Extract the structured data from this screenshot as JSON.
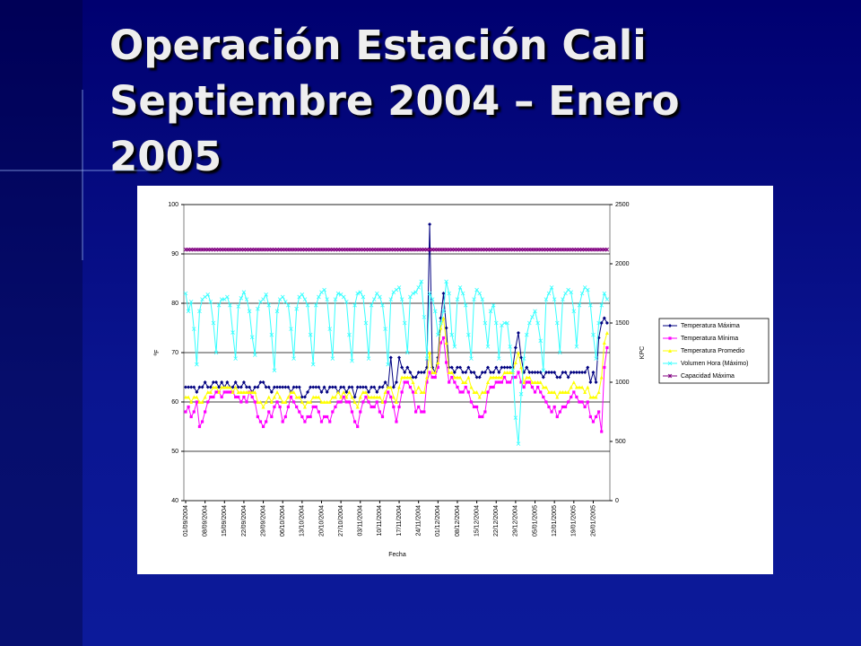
{
  "slide_title": "Operación Estación Cali Septiembre 2004 – Enero 2005",
  "chart_data": {
    "type": "line",
    "x_label": "Fecha",
    "y_label": "ºF",
    "y2_label": "KPC",
    "ylim": [
      40,
      100
    ],
    "yticks": [
      40,
      50,
      60,
      70,
      80,
      90,
      100
    ],
    "y2lim": [
      0,
      2500
    ],
    "y2ticks": [
      0,
      500,
      1000,
      1500,
      2000,
      2500
    ],
    "grid": true,
    "legend": "right",
    "categories": [
      "01/09/2004",
      null,
      null,
      null,
      null,
      null,
      null,
      "08/09/2004",
      null,
      null,
      null,
      null,
      null,
      null,
      "15/09/2004",
      null,
      null,
      null,
      null,
      null,
      null,
      "22/09/2004",
      null,
      null,
      null,
      null,
      null,
      null,
      "29/09/2004",
      null,
      null,
      null,
      null,
      null,
      null,
      "06/10/2004",
      null,
      null,
      null,
      null,
      null,
      null,
      "13/10/2004",
      null,
      null,
      null,
      null,
      null,
      null,
      "20/10/2004",
      null,
      null,
      null,
      null,
      null,
      null,
      "27/10/2004",
      null,
      null,
      null,
      null,
      null,
      null,
      "03/11/2004",
      null,
      null,
      null,
      null,
      null,
      null,
      "10/11/2004",
      null,
      null,
      null,
      null,
      null,
      null,
      "17/11/2004",
      null,
      null,
      null,
      null,
      null,
      null,
      "24/11/2004",
      null,
      null,
      null,
      null,
      null,
      null,
      "01/12/2004",
      null,
      null,
      null,
      null,
      null,
      null,
      "08/12/2004",
      null,
      null,
      null,
      null,
      null,
      null,
      "15/12/2004",
      null,
      null,
      null,
      null,
      null,
      null,
      "22/12/2004",
      null,
      null,
      null,
      null,
      null,
      null,
      "29/12/2004",
      null,
      null,
      null,
      null,
      null,
      null,
      "05/01/2005",
      null,
      null,
      null,
      null,
      null,
      null,
      "12/01/2005",
      null,
      null,
      null,
      null,
      null,
      null,
      "19/01/2005",
      null,
      null,
      null,
      null,
      null,
      null,
      "26/01/2005",
      null,
      null,
      null,
      null,
      null
    ],
    "series": [
      {
        "name": "Temperatura Máxima",
        "color": "#000080",
        "marker": "diamond",
        "values": [
          63,
          63,
          63,
          63,
          62,
          63,
          63,
          64,
          63,
          63,
          64,
          64,
          63,
          64,
          63,
          64,
          63,
          63,
          64,
          63,
          63,
          64,
          63,
          63,
          62,
          63,
          63,
          64,
          64,
          63,
          63,
          62,
          63,
          63,
          63,
          63,
          63,
          63,
          62,
          63,
          63,
          63,
          61,
          61,
          62,
          63,
          63,
          63,
          63,
          62,
          63,
          62,
          63,
          63,
          63,
          62,
          63,
          63,
          62,
          63,
          63,
          61,
          63,
          63,
          63,
          63,
          62,
          63,
          63,
          62,
          63,
          63,
          64,
          63,
          69,
          63,
          64,
          69,
          67,
          66,
          67,
          66,
          65,
          65,
          66,
          66,
          66,
          67,
          96,
          67,
          66,
          69,
          77,
          82,
          75,
          67,
          67,
          66,
          67,
          67,
          66,
          66,
          67,
          66,
          66,
          65,
          65,
          66,
          66,
          67,
          66,
          66,
          67,
          66,
          67,
          67,
          67,
          67,
          67,
          71,
          74,
          69,
          66,
          67,
          66,
          66,
          66,
          66,
          66,
          65,
          66,
          66,
          66,
          66,
          65,
          65,
          66,
          66,
          65,
          66,
          66,
          66,
          66,
          66,
          66,
          67,
          64,
          66,
          64,
          73,
          76,
          77,
          76
        ]
      },
      {
        "name": "Temperatura Mínima",
        "color": "#ff00ff",
        "marker": "square",
        "values": [
          58,
          59,
          57,
          58,
          60,
          55,
          56,
          58,
          60,
          61,
          61,
          62,
          62,
          61,
          62,
          62,
          62,
          62,
          61,
          61,
          60,
          61,
          60,
          62,
          61,
          60,
          57,
          56,
          55,
          56,
          58,
          57,
          59,
          60,
          59,
          56,
          57,
          59,
          61,
          60,
          59,
          58,
          57,
          56,
          57,
          57,
          59,
          59,
          58,
          56,
          57,
          57,
          56,
          58,
          59,
          60,
          60,
          61,
          60,
          60,
          58,
          56,
          55,
          58,
          60,
          61,
          60,
          59,
          59,
          60,
          58,
          57,
          60,
          62,
          61,
          59,
          56,
          59,
          62,
          64,
          64,
          63,
          62,
          58,
          59,
          58,
          58,
          64,
          66,
          65,
          65,
          67,
          72,
          73,
          68,
          64,
          65,
          64,
          63,
          62,
          62,
          63,
          62,
          60,
          59,
          59,
          57,
          57,
          58,
          62,
          63,
          63,
          64,
          64,
          64,
          65,
          64,
          64,
          65,
          65,
          66,
          64,
          63,
          64,
          64,
          63,
          62,
          63,
          62,
          61,
          60,
          59,
          58,
          59,
          57,
          58,
          59,
          59,
          60,
          61,
          62,
          61,
          60,
          60,
          59,
          60,
          57,
          56,
          57,
          58,
          54,
          67,
          71
        ]
      },
      {
        "name": "Temperatura Promedio",
        "color": "#ffff00",
        "marker": "triangle",
        "values": [
          61,
          61,
          60,
          61,
          61,
          60,
          60,
          61,
          62,
          62,
          63,
          63,
          62,
          63,
          63,
          63,
          63,
          62,
          63,
          62,
          62,
          62,
          62,
          62,
          62,
          62,
          60,
          60,
          59,
          60,
          61,
          60,
          61,
          62,
          61,
          60,
          60,
          61,
          62,
          62,
          61,
          61,
          60,
          59,
          60,
          60,
          61,
          61,
          61,
          60,
          60,
          60,
          60,
          61,
          61,
          62,
          61,
          62,
          61,
          62,
          61,
          60,
          59,
          61,
          62,
          62,
          61,
          61,
          61,
          61,
          61,
          60,
          62,
          63,
          63,
          61,
          60,
          63,
          65,
          65,
          65,
          65,
          64,
          62,
          63,
          62,
          62,
          65,
          70,
          66,
          66,
          68,
          75,
          77,
          72,
          66,
          66,
          65,
          65,
          65,
          64,
          64,
          65,
          63,
          62,
          62,
          61,
          62,
          62,
          64,
          65,
          65,
          65,
          65,
          65,
          66,
          66,
          66,
          66,
          68,
          70,
          67,
          64,
          65,
          65,
          64,
          64,
          64,
          64,
          63,
          63,
          62,
          62,
          62,
          61,
          62,
          62,
          62,
          62,
          63,
          64,
          63,
          63,
          63,
          62,
          63,
          61,
          61,
          61,
          62,
          65,
          72,
          74
        ]
      },
      {
        "name": "Volumen Hora (Máximo)",
        "color": "#33ffff",
        "marker": "x",
        "axis": "y2",
        "values": [
          1750,
          1600,
          1680,
          1450,
          1150,
          1600,
          1700,
          1720,
          1740,
          1680,
          1500,
          1250,
          1650,
          1700,
          1700,
          1720,
          1650,
          1420,
          1200,
          1640,
          1710,
          1760,
          1700,
          1600,
          1380,
          1230,
          1620,
          1680,
          1700,
          1740,
          1650,
          1400,
          1100,
          1600,
          1700,
          1720,
          1680,
          1650,
          1450,
          1200,
          1620,
          1720,
          1740,
          1700,
          1650,
          1400,
          1150,
          1650,
          1720,
          1760,
          1780,
          1700,
          1450,
          1200,
          1700,
          1750,
          1740,
          1720,
          1680,
          1400,
          1180,
          1650,
          1750,
          1760,
          1720,
          1500,
          1200,
          1650,
          1700,
          1750,
          1720,
          1650,
          1450,
          1150,
          1700,
          1760,
          1780,
          1800,
          1700,
          1500,
          1250,
          1720,
          1750,
          1760,
          1800,
          1850,
          1550,
          1200,
          1750,
          1700,
          1600,
          1400,
          1500,
          1600,
          1850,
          1750,
          1400,
          1300,
          1700,
          1800,
          1750,
          1650,
          1400,
          1200,
          1700,
          1780,
          1750,
          1700,
          1500,
          1300,
          1600,
          1650,
          1500,
          1200,
          1480,
          1500,
          1500,
          1300,
          1100,
          700,
          480,
          900,
          1200,
          1400,
          1500,
          1550,
          1600,
          1500,
          1350,
          1100,
          1700,
          1750,
          1800,
          1700,
          1500,
          1250,
          1700,
          1750,
          1780,
          1760,
          1600,
          1300,
          1650,
          1750,
          1800,
          1780,
          1650,
          1400,
          1200,
          1500,
          1650,
          1750,
          1700
        ]
      },
      {
        "name": "Capacidad Máxima",
        "color": "#800080",
        "marker": "star",
        "axis": "y2",
        "values": [
          2120,
          2120,
          2120,
          2120,
          2120,
          2120,
          2120,
          2120,
          2120,
          2120,
          2120,
          2120,
          2120,
          2120,
          2120,
          2120,
          2120,
          2120,
          2120,
          2120,
          2120,
          2120,
          2120,
          2120,
          2120,
          2120,
          2120,
          2120,
          2120,
          2120,
          2120,
          2120,
          2120,
          2120,
          2120,
          2120,
          2120,
          2120,
          2120,
          2120,
          2120,
          2120,
          2120,
          2120,
          2120,
          2120,
          2120,
          2120,
          2120,
          2120,
          2120,
          2120,
          2120,
          2120,
          2120,
          2120,
          2120,
          2120,
          2120,
          2120,
          2120,
          2120,
          2120,
          2120,
          2120,
          2120,
          2120,
          2120,
          2120,
          2120,
          2120,
          2120,
          2120,
          2120,
          2120,
          2120,
          2120,
          2120,
          2120,
          2120,
          2120,
          2120,
          2120,
          2120,
          2120,
          2120,
          2120,
          2120,
          2120,
          2120,
          2120,
          2120,
          2120,
          2120,
          2120,
          2120,
          2120,
          2120,
          2120,
          2120,
          2120,
          2120,
          2120,
          2120,
          2120,
          2120,
          2120,
          2120,
          2120,
          2120,
          2120,
          2120,
          2120,
          2120,
          2120,
          2120,
          2120,
          2120,
          2120,
          2120,
          2120,
          2120,
          2120,
          2120,
          2120,
          2120,
          2120,
          2120,
          2120,
          2120,
          2120,
          2120,
          2120,
          2120,
          2120,
          2120,
          2120,
          2120,
          2120,
          2120,
          2120,
          2120,
          2120,
          2120,
          2120,
          2120,
          2120,
          2120,
          2120,
          2120,
          2120,
          2120,
          2120
        ]
      }
    ]
  }
}
